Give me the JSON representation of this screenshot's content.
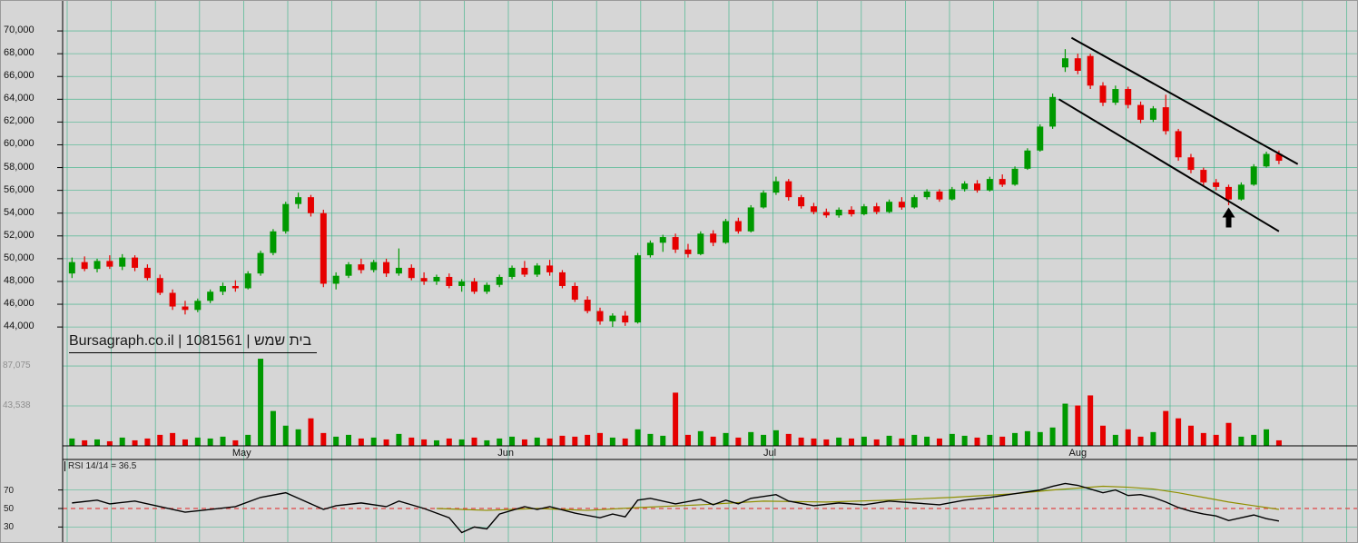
{
  "watermark": "Bursagraph.co.il | 1081561 | בית שמש",
  "rsi_label": "RSI 14/14 = 36.5",
  "colors": {
    "background": "#d6d6d6",
    "grid": "#3eb489",
    "bull": "#009900",
    "bear": "#e60000",
    "trendline": "#000000",
    "arrow": "#000000",
    "rsi_line": "#000000",
    "rsi_signal": "#8f8f00",
    "rsi_midline": "#e04545",
    "axis_text": "#111111",
    "volume_axis_text": "#8f8f8f"
  },
  "price_axis": {
    "tick_labels": [
      "70,000",
      "68,000",
      "66,000",
      "64,000",
      "62,000",
      "60,000",
      "58,000",
      "56,000",
      "54,000",
      "52,000",
      "50,000",
      "48,000",
      "46,000",
      "44,000"
    ],
    "tick_values": [
      70000,
      68000,
      66000,
      64000,
      62000,
      60000,
      58000,
      56000,
      54000,
      52000,
      50000,
      48000,
      46000,
      44000
    ]
  },
  "volume_axis": {
    "labels": [
      {
        "text": "87,075",
        "value": 87075
      },
      {
        "text": "43,538",
        "value": 43538
      }
    ]
  },
  "rsi_axis": {
    "tick_labels": [
      "70",
      "50",
      "30"
    ],
    "tick_values": [
      70,
      50,
      30
    ]
  },
  "x_axis": {
    "months": [
      {
        "label": "May",
        "index": 13.5
      },
      {
        "label": "Jun",
        "index": 34.5
      },
      {
        "label": "Jul",
        "index": 55.5
      },
      {
        "label": "Aug",
        "index": 80
      }
    ]
  },
  "chart_data": {
    "type": "candlestick",
    "source": "Bursagraph.co.il",
    "symbol": "1081561",
    "name": "בית שמש",
    "panels": [
      "price",
      "volume",
      "rsi"
    ],
    "price_range": [
      44000,
      70000
    ],
    "ohlc_format": [
      "open",
      "high",
      "low",
      "close"
    ],
    "candles": [
      [
        48700,
        50100,
        48300,
        49700
      ],
      [
        49700,
        50200,
        48900,
        49100
      ],
      [
        49100,
        50000,
        48800,
        49800
      ],
      [
        49800,
        50300,
        49100,
        49300
      ],
      [
        49300,
        50400,
        49000,
        50100
      ],
      [
        50100,
        50300,
        48900,
        49200
      ],
      [
        49200,
        49500,
        48100,
        48300
      ],
      [
        48300,
        48600,
        46800,
        47000
      ],
      [
        47000,
        47300,
        45500,
        45800
      ],
      [
        45800,
        46300,
        45100,
        45500
      ],
      [
        45500,
        46500,
        45300,
        46300
      ],
      [
        46300,
        47300,
        46100,
        47100
      ],
      [
        47100,
        47900,
        46800,
        47600
      ],
      [
        47600,
        48100,
        47100,
        47400
      ],
      [
        47400,
        48900,
        47300,
        48700
      ],
      [
        48700,
        50700,
        48500,
        50500
      ],
      [
        50500,
        52600,
        50300,
        52400
      ],
      [
        52400,
        55000,
        52200,
        54800
      ],
      [
        54800,
        55800,
        54400,
        55400
      ],
      [
        55400,
        55600,
        53700,
        54000
      ],
      [
        54000,
        54300,
        47500,
        47800
      ],
      [
        47800,
        48800,
        47300,
        48500
      ],
      [
        48500,
        49700,
        48300,
        49500
      ],
      [
        49500,
        50000,
        48700,
        49000
      ],
      [
        49000,
        49900,
        48800,
        49700
      ],
      [
        49700,
        50000,
        48400,
        48700
      ],
      [
        48700,
        50900,
        48500,
        49200
      ],
      [
        49200,
        49500,
        48100,
        48300
      ],
      [
        48300,
        48800,
        47700,
        48000
      ],
      [
        48000,
        48600,
        47700,
        48400
      ],
      [
        48400,
        48700,
        47400,
        47600
      ],
      [
        47600,
        48200,
        47100,
        48000
      ],
      [
        48000,
        48300,
        46900,
        47100
      ],
      [
        47100,
        47900,
        46900,
        47700
      ],
      [
        47700,
        48600,
        47500,
        48400
      ],
      [
        48400,
        49400,
        48200,
        49200
      ],
      [
        49200,
        49800,
        48400,
        48600
      ],
      [
        48600,
        49600,
        48400,
        49400
      ],
      [
        49400,
        49900,
        48500,
        48800
      ],
      [
        48800,
        49000,
        47400,
        47600
      ],
      [
        47600,
        47900,
        46200,
        46400
      ],
      [
        46400,
        46700,
        45200,
        45400
      ],
      [
        45400,
        45700,
        44200,
        44500
      ],
      [
        44500,
        45200,
        44000,
        45000
      ],
      [
        45000,
        45400,
        44100,
        44400
      ],
      [
        44400,
        50500,
        44300,
        50300
      ],
      [
        50300,
        51600,
        50100,
        51400
      ],
      [
        51400,
        52100,
        50600,
        51900
      ],
      [
        51900,
        52200,
        50500,
        50800
      ],
      [
        50800,
        51300,
        50100,
        50400
      ],
      [
        50400,
        52400,
        50300,
        52200
      ],
      [
        52200,
        52500,
        51100,
        51400
      ],
      [
        51400,
        53500,
        51300,
        53300
      ],
      [
        53300,
        53600,
        52200,
        52400
      ],
      [
        52400,
        54700,
        52300,
        54500
      ],
      [
        54500,
        56000,
        54400,
        55800
      ],
      [
        55800,
        57200,
        55600,
        56800
      ],
      [
        56800,
        57000,
        55100,
        55400
      ],
      [
        55400,
        55600,
        54400,
        54600
      ],
      [
        54600,
        54900,
        53900,
        54100
      ],
      [
        54100,
        54400,
        53600,
        53800
      ],
      [
        53800,
        54500,
        53600,
        54300
      ],
      [
        54300,
        54600,
        53700,
        53900
      ],
      [
        53900,
        54800,
        53800,
        54600
      ],
      [
        54600,
        54900,
        53900,
        54100
      ],
      [
        54100,
        55200,
        54000,
        55000
      ],
      [
        55000,
        55400,
        54300,
        54500
      ],
      [
        54500,
        55600,
        54400,
        55400
      ],
      [
        55400,
        56100,
        55200,
        55900
      ],
      [
        55900,
        56100,
        55000,
        55200
      ],
      [
        55200,
        56300,
        55100,
        56100
      ],
      [
        56100,
        56800,
        55900,
        56600
      ],
      [
        56600,
        56900,
        55800,
        56000
      ],
      [
        56000,
        57200,
        55900,
        57000
      ],
      [
        57000,
        57400,
        56300,
        56500
      ],
      [
        56500,
        58100,
        56400,
        57900
      ],
      [
        57900,
        59700,
        57800,
        59500
      ],
      [
        59500,
        61800,
        59400,
        61600
      ],
      [
        61600,
        64500,
        61400,
        64200
      ],
      [
        66800,
        68400,
        66400,
        67600
      ],
      [
        67600,
        68000,
        66200,
        66500
      ],
      [
        67800,
        68000,
        64900,
        65200
      ],
      [
        65200,
        65500,
        63400,
        63700
      ],
      [
        63700,
        65200,
        63500,
        64900
      ],
      [
        64900,
        65100,
        63200,
        63500
      ],
      [
        63500,
        63800,
        61900,
        62200
      ],
      [
        62200,
        63400,
        62000,
        63200
      ],
      [
        63300,
        64400,
        60900,
        61200
      ],
      [
        61200,
        61400,
        58600,
        58900
      ],
      [
        58900,
        59200,
        57500,
        57800
      ],
      [
        57800,
        58000,
        56400,
        56700
      ],
      [
        56700,
        57000,
        56000,
        56300
      ],
      [
        56300,
        56500,
        54700,
        55200
      ],
      [
        55200,
        56700,
        55100,
        56500
      ],
      [
        56500,
        58300,
        56400,
        58100
      ],
      [
        58100,
        59400,
        58000,
        59200
      ],
      [
        59200,
        59500,
        58300,
        58600
      ]
    ],
    "volumes": [
      8000,
      6000,
      7000,
      5000,
      9000,
      6000,
      8000,
      12000,
      14000,
      7000,
      9000,
      8000,
      10000,
      6000,
      12000,
      95000,
      38000,
      22000,
      18000,
      30000,
      14000,
      10000,
      12000,
      8000,
      9000,
      7000,
      13000,
      9000,
      7000,
      6000,
      8000,
      7000,
      9000,
      6000,
      8000,
      10000,
      7000,
      9000,
      8000,
      11000,
      10000,
      12000,
      14000,
      9000,
      8000,
      18000,
      13000,
      11000,
      58000,
      12000,
      16000,
      10000,
      14000,
      9000,
      15000,
      12000,
      17000,
      13000,
      9000,
      8000,
      7000,
      9000,
      8000,
      10000,
      7000,
      11000,
      8000,
      12000,
      10000,
      8000,
      13000,
      11000,
      9000,
      12000,
      10000,
      14000,
      16000,
      15000,
      20000,
      46000,
      44000,
      55000,
      22000,
      12000,
      18000,
      10000,
      15000,
      38000,
      30000,
      22000,
      14000,
      12000,
      25000,
      10000,
      12000,
      18000,
      6000
    ],
    "rsi": {
      "period": "14/14",
      "last": 36.5,
      "points": [
        [
          0,
          56
        ],
        [
          2,
          59
        ],
        [
          3,
          55
        ],
        [
          5,
          58
        ],
        [
          7,
          52
        ],
        [
          9,
          46
        ],
        [
          11,
          49
        ],
        [
          13,
          52
        ],
        [
          15,
          62
        ],
        [
          17,
          67
        ],
        [
          19,
          55
        ],
        [
          20,
          49
        ],
        [
          21,
          53
        ],
        [
          23,
          56
        ],
        [
          25,
          52
        ],
        [
          26,
          58
        ],
        [
          28,
          50
        ],
        [
          30,
          40
        ],
        [
          31,
          24
        ],
        [
          32,
          30
        ],
        [
          33,
          28
        ],
        [
          34,
          44
        ],
        [
          36,
          52
        ],
        [
          37,
          49
        ],
        [
          38,
          52
        ],
        [
          40,
          45
        ],
        [
          42,
          40
        ],
        [
          43,
          44
        ],
        [
          44,
          41
        ],
        [
          45,
          59
        ],
        [
          46,
          61
        ],
        [
          48,
          55
        ],
        [
          50,
          60
        ],
        [
          51,
          54
        ],
        [
          52,
          59
        ],
        [
          53,
          55
        ],
        [
          54,
          61
        ],
        [
          56,
          65
        ],
        [
          57,
          58
        ],
        [
          59,
          53
        ],
        [
          61,
          56
        ],
        [
          63,
          54
        ],
        [
          65,
          58
        ],
        [
          67,
          56
        ],
        [
          69,
          54
        ],
        [
          71,
          59
        ],
        [
          73,
          62
        ],
        [
          75,
          66
        ],
        [
          77,
          70
        ],
        [
          78,
          74
        ],
        [
          79,
          77
        ],
        [
          80,
          75
        ],
        [
          81,
          71
        ],
        [
          82,
          67
        ],
        [
          83,
          70
        ],
        [
          84,
          64
        ],
        [
          85,
          65
        ],
        [
          86,
          62
        ],
        [
          87,
          57
        ],
        [
          88,
          51
        ],
        [
          89,
          47
        ],
        [
          90,
          44
        ],
        [
          91,
          42
        ],
        [
          92,
          37
        ],
        [
          93,
          40
        ],
        [
          94,
          43
        ],
        [
          95,
          39
        ],
        [
          96,
          36.5
        ]
      ],
      "signal_points": [
        [
          29,
          50
        ],
        [
          33,
          48
        ],
        [
          37,
          50
        ],
        [
          41,
          48
        ],
        [
          45,
          51
        ],
        [
          50,
          54
        ],
        [
          55,
          58
        ],
        [
          60,
          57
        ],
        [
          65,
          59
        ],
        [
          70,
          62
        ],
        [
          75,
          66
        ],
        [
          78,
          70
        ],
        [
          80,
          72
        ],
        [
          82,
          74
        ],
        [
          84,
          73
        ],
        [
          86,
          71
        ],
        [
          88,
          67
        ],
        [
          90,
          62
        ],
        [
          92,
          57
        ],
        [
          94,
          53
        ],
        [
          96,
          49
        ]
      ]
    },
    "trendlines": [
      {
        "name": "channel-upper-trendline",
        "from": [
          79.5,
          69400
        ],
        "to": [
          97.5,
          58300
        ]
      },
      {
        "name": "channel-lower-trendline",
        "from": [
          78.5,
          64000
        ],
        "to": [
          96.0,
          52400
        ]
      }
    ],
    "arrow": {
      "index": 92,
      "price": 54500
    }
  }
}
